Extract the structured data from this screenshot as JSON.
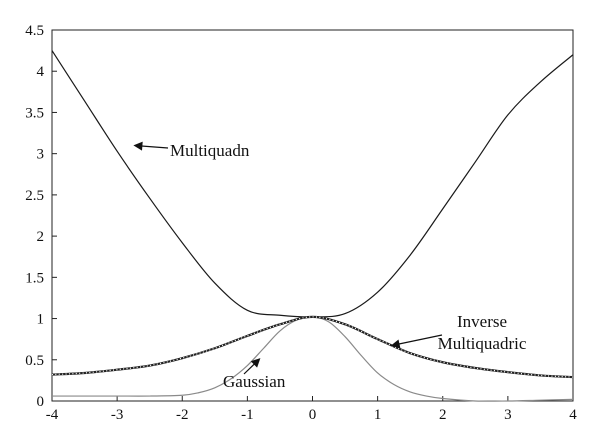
{
  "chart_data": {
    "type": "line",
    "title": "",
    "xlabel": "",
    "ylabel": "",
    "xlim": [
      -4,
      4
    ],
    "ylim": [
      0,
      4.5
    ],
    "x_ticks": [
      "-4",
      "-3",
      "-2",
      "-1",
      "0",
      "1",
      "2",
      "3",
      "4"
    ],
    "y_ticks": [
      "0",
      "0.5",
      "1",
      "1.5",
      "2",
      "2.5",
      "3",
      "3.5",
      "4",
      "4.5"
    ],
    "grid": false,
    "legend": "none",
    "series": [
      {
        "name": "Multiquadn",
        "color": "#1a1a1a",
        "style": "solid",
        "x": [
          -4,
          -3.5,
          -3,
          -2.5,
          -2,
          -1.5,
          -1,
          -0.5,
          0,
          0.5,
          1,
          1.5,
          2,
          2.5,
          3,
          3.5,
          4
        ],
        "y": [
          4.25,
          3.64,
          3.03,
          2.46,
          1.92,
          1.43,
          1.1,
          1.04,
          1.02,
          1.06,
          1.32,
          1.77,
          2.33,
          2.9,
          3.47,
          3.87,
          4.2
        ]
      },
      {
        "name": "Inverse Multiquadric",
        "color": "#222222",
        "style": "dotted-thick",
        "x": [
          -4,
          -3.5,
          -3,
          -2.5,
          -2,
          -1.5,
          -1,
          -0.5,
          0,
          0.5,
          1,
          1.5,
          2,
          2.5,
          3,
          3.5,
          4
        ],
        "y": [
          0.32,
          0.34,
          0.38,
          0.43,
          0.52,
          0.64,
          0.79,
          0.93,
          1.02,
          0.93,
          0.75,
          0.58,
          0.47,
          0.4,
          0.35,
          0.31,
          0.29
        ]
      },
      {
        "name": "Gaussian",
        "color": "#8a8a8a",
        "style": "solid",
        "x": [
          -4,
          -3.5,
          -3,
          -2.5,
          -2,
          -1.75,
          -1.5,
          -1.25,
          -1,
          -0.75,
          -0.5,
          -0.25,
          0,
          0.25,
          0.5,
          0.75,
          1,
          1.25,
          1.5,
          1.75,
          2,
          2.5,
          3,
          3.5,
          4
        ],
        "y": [
          0.06,
          0.06,
          0.06,
          0.06,
          0.07,
          0.1,
          0.16,
          0.27,
          0.43,
          0.64,
          0.85,
          0.98,
          1.02,
          0.96,
          0.78,
          0.55,
          0.34,
          0.2,
          0.11,
          0.06,
          0.03,
          0.0,
          0.0,
          0.01,
          0.02
        ]
      }
    ],
    "annotations": [
      {
        "name": "multiquadn",
        "lines": [
          "Multiquadn"
        ],
        "at_x": -2.75,
        "at_y": 3.1
      },
      {
        "name": "inverse-multiquadric",
        "lines": [
          "Inverse",
          "Multiquadric"
        ],
        "at_x": 1.2,
        "at_y": 0.67
      },
      {
        "name": "gaussian",
        "lines": [
          "Gaussian"
        ],
        "at_x": -0.8,
        "at_y": 0.52
      }
    ]
  }
}
